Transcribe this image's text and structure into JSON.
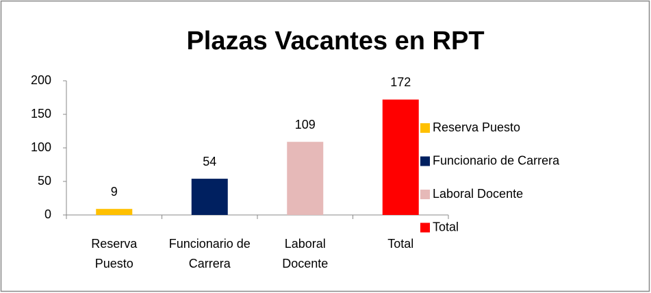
{
  "chart_data": {
    "type": "bar",
    "title": "Plazas Vacantes en RPT",
    "categories": [
      "Reserva Puesto",
      "Funcionario de Carrera",
      "Laboral Docente",
      "Total"
    ],
    "values": [
      9,
      54,
      109,
      172
    ],
    "colors": [
      "#ffc000",
      "#002060",
      "#e6b9b8",
      "#ff0000"
    ],
    "ylim": [
      0,
      200
    ],
    "yticks": [
      0,
      50,
      100,
      150,
      200
    ],
    "grid": false,
    "legend": "right"
  }
}
